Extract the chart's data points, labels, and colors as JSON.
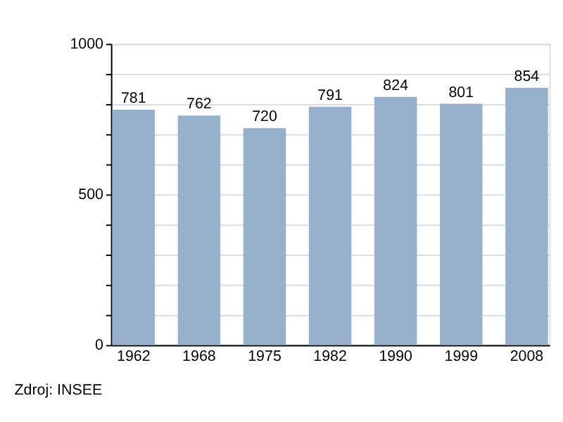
{
  "chart_data": {
    "type": "bar",
    "categories": [
      "1962",
      "1968",
      "1975",
      "1982",
      "1990",
      "1999",
      "2008"
    ],
    "values": [
      781,
      762,
      720,
      791,
      824,
      801,
      854
    ],
    "color": "#97b0cc",
    "ylim": [
      0,
      1000
    ],
    "yticks": [
      0,
      {
        "value": 100,
        "label": null
      },
      {
        "value": 200,
        "label": null
      },
      {
        "value": 300,
        "label": null
      },
      {
        "value": 400,
        "label": null
      },
      500,
      {
        "value": 600,
        "label": null
      },
      {
        "value": 700,
        "label": null
      },
      {
        "value": 800,
        "label": null
      },
      {
        "value": 900,
        "label": null
      },
      1000
    ],
    "grid": "y",
    "data_labels": true,
    "annotations": [
      "Zdroj: INSEE"
    ]
  }
}
